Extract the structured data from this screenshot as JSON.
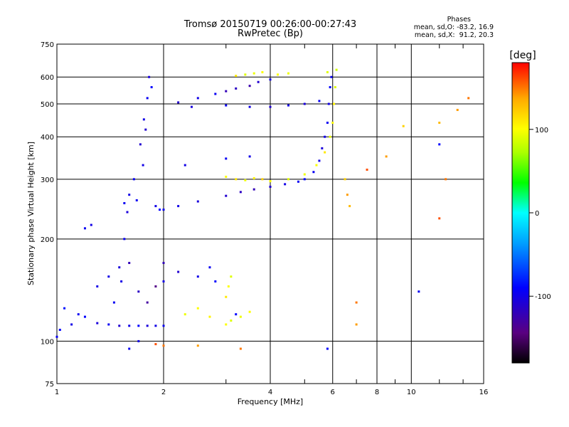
{
  "title_line1": "Tromsø 20150719 00:26:00-00:27:43",
  "title_line2": "RwPretec (Bp)",
  "stats": {
    "title": "Phases",
    "o_line": "mean, sd,O: -83.2, 16.9",
    "x_line": "mean, sd,X:  91.2, 20.3"
  },
  "chart_data": {
    "type": "scatter",
    "xlabel": "Frequency [MHz]",
    "ylabel": "Stationary phase Virtual Height [km]",
    "x_scale": "log",
    "y_scale": "log",
    "xlim": [
      1,
      16
    ],
    "ylim": [
      75,
      750
    ],
    "x_ticks": [
      1,
      2,
      4,
      6,
      8,
      10,
      16
    ],
    "x_tick_labels": [
      "1",
      "2",
      "4",
      "6",
      "8",
      "10",
      "16"
    ],
    "x_minor_ticks": [
      3,
      5,
      7,
      9,
      12,
      14
    ],
    "y_ticks": [
      75,
      100,
      200,
      300,
      400,
      500,
      600,
      750
    ],
    "y_tick_labels": [
      "75",
      "100",
      "200",
      "300",
      "400",
      "500",
      "600",
      "750"
    ],
    "grid": true,
    "colorbar": {
      "label": "[deg]",
      "range": [
        -180,
        180
      ],
      "ticks": [
        100,
        0,
        -100
      ],
      "tick_labels": [
        "100",
        "0",
        "-100"
      ],
      "colors": [
        "#000000",
        "#5a0080",
        "#0000ff",
        "#00a0ff",
        "#00ffff",
        "#00ff00",
        "#aaff00",
        "#ffff00",
        "#ffaa00",
        "#ff0000"
      ]
    },
    "series": [
      {
        "mode": "O",
        "points": [
          [
            1.0,
            103,
            -95
          ],
          [
            1.02,
            108,
            -90
          ],
          [
            1.05,
            125,
            -85
          ],
          [
            1.1,
            112,
            -100
          ],
          [
            1.15,
            120,
            -95
          ],
          [
            1.2,
            118,
            -90
          ],
          [
            1.3,
            113,
            -105
          ],
          [
            1.4,
            112,
            -95
          ],
          [
            1.5,
            111,
            -110
          ],
          [
            1.6,
            111,
            -100
          ],
          [
            1.7,
            111,
            -90
          ],
          [
            1.8,
            111,
            -105
          ],
          [
            1.9,
            111,
            -100
          ],
          [
            2.0,
            111,
            -95
          ],
          [
            1.52,
            150,
            -100
          ],
          [
            1.55,
            200,
            -95
          ],
          [
            1.58,
            240,
            -105
          ],
          [
            1.65,
            300,
            -95
          ],
          [
            1.72,
            380,
            -110
          ],
          [
            1.76,
            450,
            -100
          ],
          [
            1.8,
            520,
            -95
          ],
          [
            1.82,
            600,
            -105
          ],
          [
            1.6,
            170,
            -120
          ],
          [
            1.7,
            140,
            -115
          ],
          [
            1.68,
            260,
            -95
          ],
          [
            1.75,
            330,
            -100
          ],
          [
            1.78,
            420,
            -110
          ],
          [
            1.85,
            560,
            -90
          ],
          [
            1.9,
            250,
            -100
          ],
          [
            1.95,
            244,
            -90
          ],
          [
            2.0,
            244,
            -95
          ],
          [
            2.2,
            250,
            -100
          ],
          [
            2.5,
            258,
            -105
          ],
          [
            3.0,
            268,
            -110
          ],
          [
            3.3,
            275,
            -115
          ],
          [
            3.6,
            280,
            -120
          ],
          [
            4.0,
            285,
            -110
          ],
          [
            4.4,
            290,
            -100
          ],
          [
            4.8,
            295,
            -95
          ],
          [
            5.0,
            300,
            -90
          ],
          [
            5.3,
            315,
            -95
          ],
          [
            5.5,
            340,
            -100
          ],
          [
            5.6,
            370,
            -105
          ],
          [
            5.7,
            400,
            -100
          ],
          [
            5.8,
            440,
            -95
          ],
          [
            5.85,
            500,
            -100
          ],
          [
            5.9,
            560,
            -90
          ],
          [
            5.95,
            600,
            -95
          ],
          [
            2.2,
            505,
            -110
          ],
          [
            2.5,
            520,
            -100
          ],
          [
            2.8,
            535,
            -95
          ],
          [
            3.0,
            545,
            -120
          ],
          [
            3.2,
            555,
            -115
          ],
          [
            3.5,
            565,
            -125
          ],
          [
            3.7,
            580,
            -110
          ],
          [
            4.0,
            590,
            -100
          ],
          [
            2.4,
            490,
            -105
          ],
          [
            3.0,
            495,
            -95
          ],
          [
            3.5,
            490,
            -100
          ],
          [
            4.0,
            490,
            -110
          ],
          [
            4.5,
            495,
            -100
          ],
          [
            5.0,
            500,
            -105
          ],
          [
            5.5,
            510,
            -95
          ],
          [
            1.2,
            215,
            -95
          ],
          [
            1.25,
            220,
            -100
          ],
          [
            1.55,
            255,
            -95
          ],
          [
            1.6,
            270,
            -100
          ],
          [
            1.4,
            155,
            -100
          ],
          [
            1.45,
            130,
            -95
          ],
          [
            1.5,
            165,
            -105
          ],
          [
            2.0,
            150,
            -100
          ],
          [
            2.2,
            160,
            -110
          ],
          [
            2.5,
            155,
            -100
          ],
          [
            2.7,
            165,
            -95
          ],
          [
            2.8,
            150,
            -90
          ],
          [
            2.3,
            330,
            -100
          ],
          [
            3.0,
            345,
            -95
          ],
          [
            3.5,
            350,
            -100
          ],
          [
            3.2,
            120,
            -90
          ],
          [
            1.8,
            130,
            -130
          ],
          [
            1.9,
            145,
            -140
          ],
          [
            2.0,
            170,
            -120
          ],
          [
            1.3,
            145,
            -100
          ],
          [
            1.6,
            95,
            -95
          ],
          [
            1.7,
            100,
            -100
          ],
          [
            5.8,
            95,
            -90
          ],
          [
            10.5,
            140,
            -95
          ],
          [
            12.0,
            380,
            -90
          ]
        ]
      },
      {
        "mode": "X",
        "points": [
          [
            3.0,
            305,
            100
          ],
          [
            3.2,
            300,
            110
          ],
          [
            3.4,
            298,
            95
          ],
          [
            3.6,
            302,
            105
          ],
          [
            3.8,
            300,
            120
          ],
          [
            4.0,
            296,
            100
          ],
          [
            4.5,
            300,
            90
          ],
          [
            5.0,
            310,
            95
          ],
          [
            5.4,
            330,
            100
          ],
          [
            5.7,
            360,
            110
          ],
          [
            5.9,
            400,
            95
          ],
          [
            6.0,
            440,
            100
          ],
          [
            6.05,
            500,
            105
          ],
          [
            6.1,
            560,
            90
          ],
          [
            6.15,
            630,
            85
          ],
          [
            3.8,
            620,
            100
          ],
          [
            3.6,
            615,
            95
          ],
          [
            3.4,
            610,
            90
          ],
          [
            3.2,
            605,
            110
          ],
          [
            4.2,
            610,
            100
          ],
          [
            4.5,
            615,
            95
          ],
          [
            5.8,
            620,
            90
          ],
          [
            2.3,
            120,
            95
          ],
          [
            2.5,
            125,
            100
          ],
          [
            2.7,
            118,
            105
          ],
          [
            3.0,
            112,
            100
          ],
          [
            3.1,
            115,
            90
          ],
          [
            3.3,
            118,
            95
          ],
          [
            3.5,
            122,
            100
          ],
          [
            3.0,
            135,
            110
          ],
          [
            3.05,
            145,
            100
          ],
          [
            3.1,
            155,
            90
          ],
          [
            1.9,
            98,
            160
          ],
          [
            2.0,
            97,
            150
          ],
          [
            2.5,
            97,
            140
          ],
          [
            3.3,
            95,
            150
          ],
          [
            6.5,
            300,
            120
          ],
          [
            6.6,
            270,
            140
          ],
          [
            6.7,
            250,
            130
          ],
          [
            7.0,
            112,
            140
          ],
          [
            7.0,
            130,
            150
          ],
          [
            9.5,
            430,
            120
          ],
          [
            12.0,
            440,
            130
          ],
          [
            12.5,
            300,
            150
          ],
          [
            12.0,
            230,
            160
          ],
          [
            13.5,
            480,
            140
          ],
          [
            14.5,
            520,
            150
          ],
          [
            7.5,
            320,
            160
          ],
          [
            8.5,
            350,
            140
          ]
        ]
      }
    ]
  }
}
